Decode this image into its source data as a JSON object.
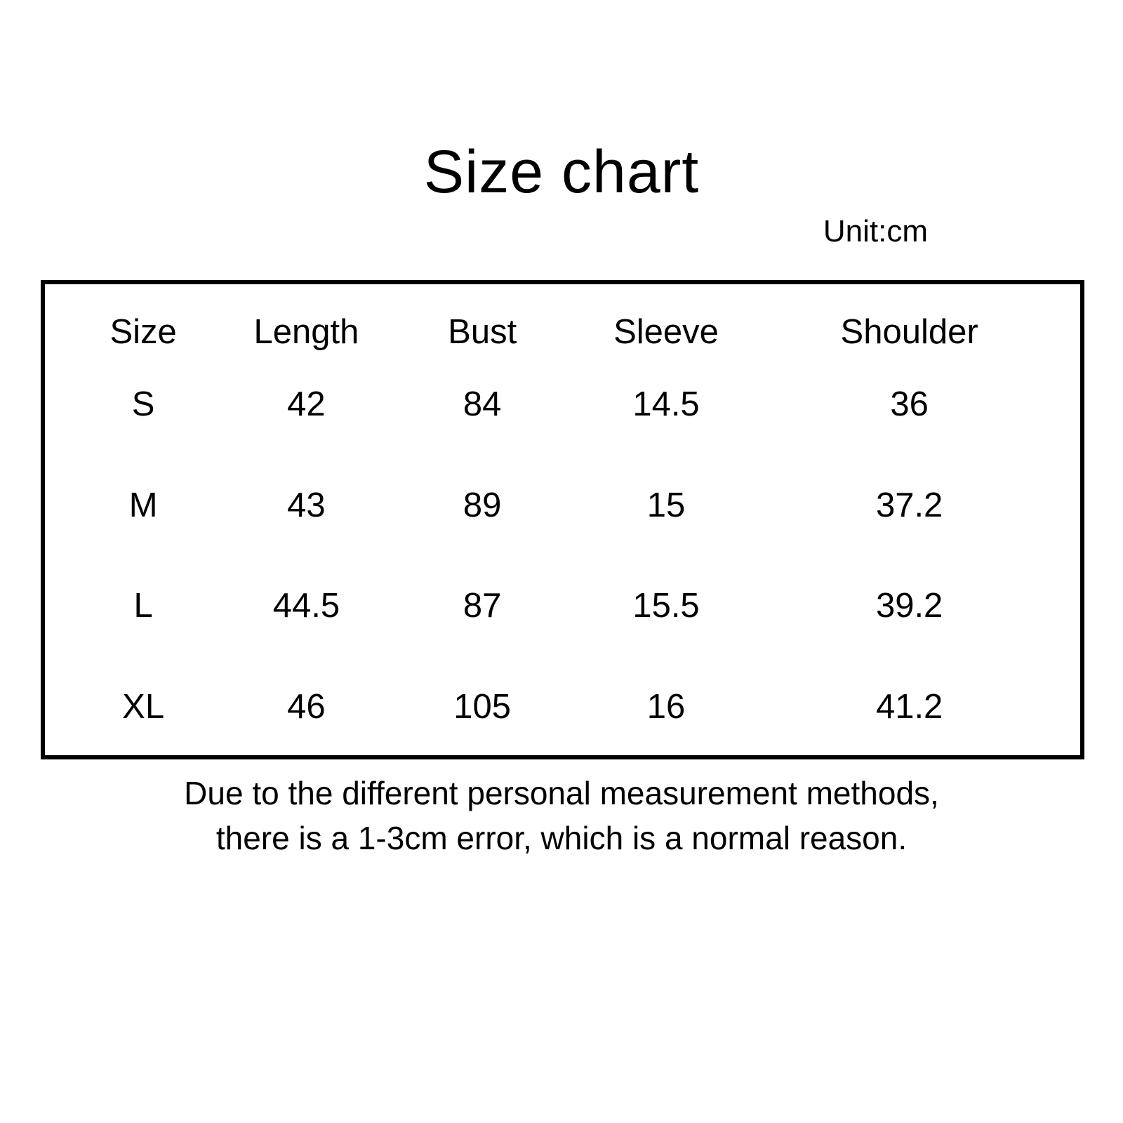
{
  "title": "Size chart",
  "unit_label": "Unit:cm",
  "note_line1": "Due to the different personal measurement methods,",
  "note_line2": "there is a 1-3cm error, which is a normal reason.",
  "table": {
    "columns": [
      "Size",
      "Length",
      "Bust",
      "Sleeve",
      "Shoulder"
    ],
    "rows": [
      [
        "S",
        "42",
        "84",
        "14.5",
        "36"
      ],
      [
        "M",
        "43",
        "89",
        "15",
        "37.2"
      ],
      [
        "L",
        "44.5",
        "87",
        "15.5",
        "39.2"
      ],
      [
        "XL",
        "46",
        "105",
        "16",
        "41.2"
      ]
    ]
  },
  "chart_data": {
    "type": "table",
    "title": "Size chart",
    "unit": "cm",
    "columns": [
      "Size",
      "Length",
      "Bust",
      "Sleeve",
      "Shoulder"
    ],
    "rows": [
      {
        "Size": "S",
        "Length": 42,
        "Bust": 84,
        "Sleeve": 14.5,
        "Shoulder": 36
      },
      {
        "Size": "M",
        "Length": 43,
        "Bust": 89,
        "Sleeve": 15,
        "Shoulder": 37.2
      },
      {
        "Size": "L",
        "Length": 44.5,
        "Bust": 87,
        "Sleeve": 15.5,
        "Shoulder": 39.2
      },
      {
        "Size": "XL",
        "Length": 46,
        "Bust": 105,
        "Sleeve": 16,
        "Shoulder": 41.2
      }
    ],
    "annotations": [
      "Unit:cm",
      "Due to the different personal measurement methods, there is a 1-3cm error, which is a normal reason."
    ],
    "colors": {
      "background": "#ffffff",
      "text": "#000000",
      "border": "#000000"
    }
  }
}
